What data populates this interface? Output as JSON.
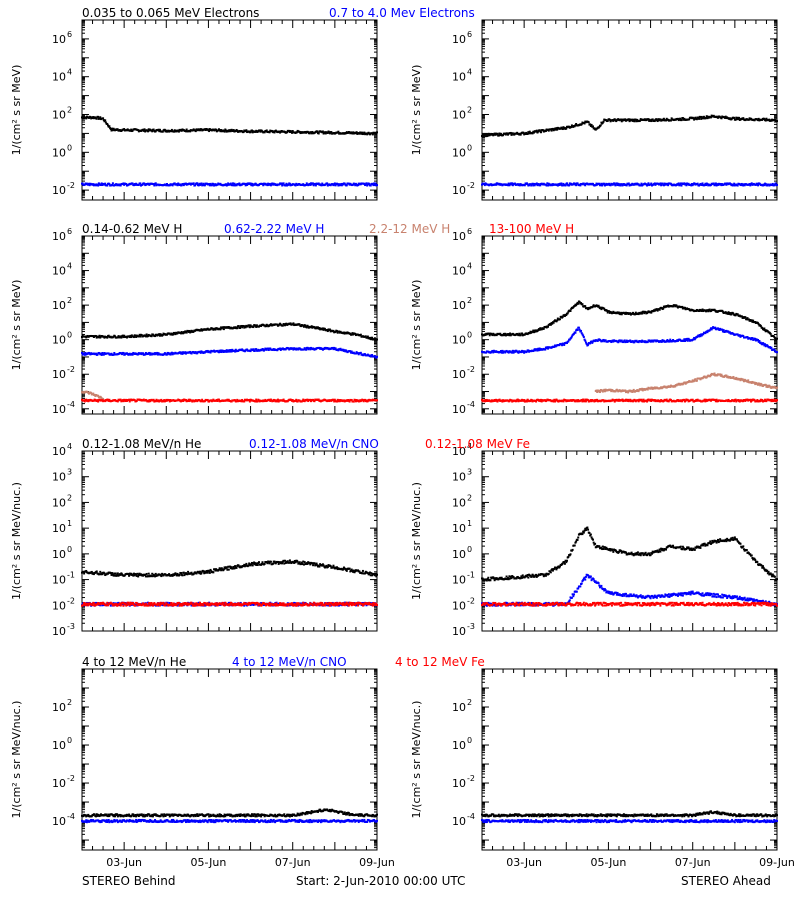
{
  "footer": {
    "left": "STEREO Behind",
    "center": "Start:  2-Jun-2010 00:00 UTC",
    "right": "STEREO Ahead"
  },
  "colors": {
    "black": "#000000",
    "blue": "#0000ff",
    "tan": "#c8826e",
    "red": "#ff0000"
  },
  "chart_data": [
    {
      "type": "scatter",
      "row": 0,
      "side": "behind",
      "title_segments": [
        {
          "text": "0.035 to 0.065 MeV Electrons",
          "color": "#000000"
        },
        {
          "text": "0.7 to 4.0 Mev Electrons",
          "color": "#0000ff"
        }
      ],
      "ylabel": "1/(cm² s sr MeV)",
      "yscale": "log",
      "ylim": [
        0.003,
        10000000
      ],
      "ytick_labels": [
        "10^6",
        "10^4",
        "10^2",
        "10^0",
        "10^-2"
      ],
      "xlim": [
        0,
        7
      ],
      "xtick_labels": [
        "03-Jun",
        "05-Jun",
        "07-Jun",
        "09-Jun"
      ],
      "series": [
        {
          "color": "#000000",
          "x": [
            0,
            0.3,
            0.5,
            0.7,
            1,
            2,
            3,
            4,
            5,
            6,
            7
          ],
          "y": [
            70,
            70,
            60,
            16,
            15,
            14,
            15,
            13,
            12,
            11,
            10
          ]
        },
        {
          "color": "#0000ff",
          "x": [
            0,
            1,
            2,
            3,
            4,
            5,
            6,
            7
          ],
          "y": [
            0.02,
            0.02,
            0.02,
            0.02,
            0.02,
            0.02,
            0.02,
            0.02
          ]
        }
      ]
    },
    {
      "type": "scatter",
      "row": 0,
      "side": "ahead",
      "ylabel": "1/(cm² s sr MeV)",
      "yscale": "log",
      "ylim": [
        0.003,
        10000000
      ],
      "ytick_labels": [
        "10^6",
        "10^4",
        "10^2",
        "10^0",
        "10^-2"
      ],
      "xlim": [
        0,
        7
      ],
      "xtick_labels": [
        "03-Jun",
        "05-Jun",
        "07-Jun",
        "09-Jun"
      ],
      "series": [
        {
          "color": "#000000",
          "x": [
            0,
            1,
            2,
            2.5,
            2.7,
            2.9,
            3.2,
            4,
            5,
            5.5,
            6,
            7
          ],
          "y": [
            8,
            10,
            20,
            40,
            15,
            50,
            50,
            50,
            60,
            80,
            60,
            50
          ]
        },
        {
          "color": "#0000ff",
          "x": [
            0,
            1,
            2,
            3,
            4,
            5,
            6,
            7
          ],
          "y": [
            0.02,
            0.02,
            0.02,
            0.02,
            0.02,
            0.02,
            0.02,
            0.02
          ]
        }
      ]
    },
    {
      "type": "scatter",
      "row": 1,
      "side": "behind",
      "title_segments": [
        {
          "text": "0.14-0.62 MeV H",
          "color": "#000000"
        },
        {
          "text": "0.62-2.22 MeV H",
          "color": "#0000ff"
        },
        {
          "text": "2.2-12 MeV H",
          "color": "#c8826e"
        },
        {
          "text": "13-100 MeV H",
          "color": "#ff0000"
        }
      ],
      "ylabel": "1/(cm² s sr MeV)",
      "yscale": "log",
      "ylim": [
        5e-05,
        1000000
      ],
      "ytick_labels": [
        "10^6",
        "10^4",
        "10^2",
        "10^0",
        "10^-2",
        "10^-4"
      ],
      "xlim": [
        0,
        7
      ],
      "xtick_labels": [
        "03-Jun",
        "05-Jun",
        "07-Jun",
        "09-Jun"
      ],
      "series": [
        {
          "color": "#000000",
          "x": [
            0,
            0.5,
            1,
            2,
            3,
            4,
            5,
            5.5,
            6,
            6.5,
            7
          ],
          "y": [
            1.5,
            1.5,
            1.5,
            2,
            4,
            6,
            8,
            5,
            3,
            2,
            1
          ]
        },
        {
          "color": "#0000ff",
          "x": [
            0,
            1,
            2,
            3,
            4,
            5,
            6,
            7
          ],
          "y": [
            0.15,
            0.15,
            0.15,
            0.2,
            0.25,
            0.3,
            0.3,
            0.1
          ]
        },
        {
          "color": "#c8826e",
          "x": [
            0,
            0.2,
            0.5
          ],
          "y": [
            0.001,
            0.0008,
            0.0004
          ]
        },
        {
          "color": "#ff0000",
          "x": [
            0,
            1,
            2,
            3,
            4,
            5,
            6,
            7
          ],
          "y": [
            0.0003,
            0.0003,
            0.0003,
            0.0003,
            0.0003,
            0.0003,
            0.0003,
            0.0003
          ]
        }
      ]
    },
    {
      "type": "scatter",
      "row": 1,
      "side": "ahead",
      "ylabel": "1/(cm² s sr MeV)",
      "yscale": "log",
      "ylim": [
        5e-05,
        1000000
      ],
      "ytick_labels": [
        "10^6",
        "10^4",
        "10^2",
        "10^0",
        "10^-2",
        "10^-4"
      ],
      "xlim": [
        0,
        7
      ],
      "xtick_labels": [
        "03-Jun",
        "05-Jun",
        "07-Jun",
        "09-Jun"
      ],
      "series": [
        {
          "color": "#000000",
          "x": [
            0,
            1,
            1.5,
            2,
            2.3,
            2.5,
            2.7,
            3,
            3.5,
            4,
            4.5,
            5,
            5.5,
            6,
            6.5,
            7
          ],
          "y": [
            2,
            2,
            5,
            30,
            150,
            60,
            100,
            40,
            30,
            40,
            100,
            50,
            50,
            30,
            10,
            1
          ]
        },
        {
          "color": "#0000ff",
          "x": [
            0,
            1,
            1.5,
            2,
            2.3,
            2.5,
            2.7,
            3,
            4,
            5,
            5.5,
            6,
            6.5,
            7
          ],
          "y": [
            0.2,
            0.2,
            0.3,
            0.6,
            5,
            0.5,
            1,
            0.8,
            0.8,
            1,
            5,
            2,
            1,
            0.2
          ]
        },
        {
          "color": "#c8826e",
          "x": [
            2.7,
            3,
            3.5,
            4,
            4.5,
            5,
            5.5,
            6,
            6.5,
            7
          ],
          "y": [
            0.001,
            0.0012,
            0.001,
            0.0015,
            0.002,
            0.004,
            0.01,
            0.006,
            0.003,
            0.0015
          ]
        },
        {
          "color": "#ff0000",
          "x": [
            0,
            1,
            2,
            3,
            4,
            5,
            6,
            7
          ],
          "y": [
            0.0003,
            0.0003,
            0.0003,
            0.0003,
            0.0003,
            0.0003,
            0.0003,
            0.0003
          ]
        }
      ]
    },
    {
      "type": "scatter",
      "row": 2,
      "side": "behind",
      "title_segments": [
        {
          "text": "0.12-1.08 MeV/n He",
          "color": "#000000"
        },
        {
          "text": "0.12-1.08 MeV/n CNO",
          "color": "#0000ff"
        },
        {
          "text": "0.12-1.08 MeV Fe",
          "color": "#ff0000"
        }
      ],
      "ylabel": "1/(cm² s sr MeV/nuc.)",
      "yscale": "log",
      "ylim": [
        0.001,
        10000
      ],
      "ytick_labels": [
        "10^4",
        "10^3",
        "10^2",
        "10^1",
        "10^0",
        "10^-1",
        "10^-2",
        "10^-3"
      ],
      "xlim": [
        0,
        7
      ],
      "xtick_labels": [
        "03-Jun",
        "05-Jun",
        "07-Jun",
        "09-Jun"
      ],
      "series": [
        {
          "color": "#000000",
          "x": [
            0,
            1,
            2,
            3,
            4,
            5,
            6,
            7
          ],
          "y": [
            0.2,
            0.15,
            0.15,
            0.2,
            0.4,
            0.5,
            0.3,
            0.15
          ]
        },
        {
          "color": "#0000ff",
          "x": [
            0,
            1,
            2,
            3,
            4,
            5,
            6,
            7
          ],
          "y": [
            0.011,
            0.011,
            0.011,
            0.011,
            0.011,
            0.011,
            0.011,
            0.011
          ]
        },
        {
          "color": "#ff0000",
          "x": [
            0,
            1,
            2,
            3,
            4,
            5,
            6,
            7
          ],
          "y": [
            0.011,
            0.011,
            0.011,
            0.011,
            0.011,
            0.011,
            0.011,
            0.011
          ]
        }
      ]
    },
    {
      "type": "scatter",
      "row": 2,
      "side": "ahead",
      "ylabel": "1/(cm² s sr MeV/nuc.)",
      "yscale": "log",
      "ylim": [
        0.001,
        10000
      ],
      "ytick_labels": [
        "10^4",
        "10^3",
        "10^2",
        "10^1",
        "10^0",
        "10^-1",
        "10^-2",
        "10^-3"
      ],
      "xlim": [
        0,
        7
      ],
      "xtick_labels": [
        "03-Jun",
        "05-Jun",
        "07-Jun",
        "09-Jun"
      ],
      "series": [
        {
          "color": "#000000",
          "x": [
            0,
            1.5,
            2,
            2.3,
            2.5,
            2.7,
            3,
            3.5,
            4,
            4.5,
            5,
            5.5,
            6,
            6.5,
            7
          ],
          "y": [
            0.1,
            0.15,
            0.5,
            5,
            10,
            2,
            1.5,
            1,
            1,
            2,
            1.5,
            3,
            4,
            0.5,
            0.1
          ]
        },
        {
          "color": "#0000ff",
          "x": [
            0,
            2,
            2.3,
            2.5,
            3,
            4,
            5,
            6,
            7
          ],
          "y": [
            0.011,
            0.011,
            0.05,
            0.15,
            0.03,
            0.02,
            0.03,
            0.02,
            0.011
          ]
        },
        {
          "color": "#ff0000",
          "x": [
            0,
            1,
            2,
            3,
            4,
            5,
            6,
            7
          ],
          "y": [
            0.011,
            0.011,
            0.011,
            0.011,
            0.011,
            0.011,
            0.011,
            0.011
          ]
        }
      ]
    },
    {
      "type": "scatter",
      "row": 3,
      "side": "behind",
      "title_segments": [
        {
          "text": "4 to 12 MeV/n He",
          "color": "#000000"
        },
        {
          "text": "4 to 12 MeV/n CNO",
          "color": "#0000ff"
        },
        {
          "text": "4 to 12 MeV Fe",
          "color": "#ff0000"
        }
      ],
      "ylabel": "1/(cm² s sr MeV/nuc.)",
      "yscale": "log",
      "ylim": [
        3e-06,
        10000
      ],
      "ytick_labels": [
        "10^2",
        "10^0",
        "10^-2",
        "10^-4"
      ],
      "xlim": [
        0,
        7
      ],
      "xtick_labels": [
        "03-Jun",
        "05-Jun",
        "07-Jun",
        "09-Jun"
      ],
      "series": [
        {
          "color": "#000000",
          "x": [
            0,
            1,
            2,
            3,
            4,
            5,
            5.8,
            6.5,
            7
          ],
          "y": [
            0.0002,
            0.0002,
            0.0002,
            0.0002,
            0.0002,
            0.0002,
            0.0004,
            0.0002,
            0.0002
          ]
        },
        {
          "color": "#0000ff",
          "x": [
            0,
            1,
            2,
            3,
            4,
            5,
            6,
            7
          ],
          "y": [
            0.0001,
            0.0001,
            0.0001,
            0.0001,
            0.0001,
            0.0001,
            0.0001,
            0.0001
          ]
        }
      ]
    },
    {
      "type": "scatter",
      "row": 3,
      "side": "ahead",
      "ylabel": "1/(cm² s sr MeV/nuc.)",
      "yscale": "log",
      "ylim": [
        3e-06,
        10000
      ],
      "ytick_labels": [
        "10^2",
        "10^0",
        "10^-2",
        "10^-4"
      ],
      "xlim": [
        0,
        7
      ],
      "xtick_labels": [
        "03-Jun",
        "05-Jun",
        "07-Jun",
        "09-Jun"
      ],
      "series": [
        {
          "color": "#000000",
          "x": [
            0,
            1,
            2,
            3,
            4,
            5,
            5.5,
            6,
            6.5,
            7
          ],
          "y": [
            0.0002,
            0.0002,
            0.0002,
            0.0002,
            0.0002,
            0.0002,
            0.0003,
            0.0002,
            0.0002,
            0.0002
          ]
        },
        {
          "color": "#0000ff",
          "x": [
            0,
            1,
            2,
            3,
            4,
            5,
            6,
            7
          ],
          "y": [
            0.0001,
            0.0001,
            0.0001,
            0.0001,
            0.0001,
            0.0001,
            0.0001,
            0.0001
          ]
        }
      ]
    }
  ]
}
